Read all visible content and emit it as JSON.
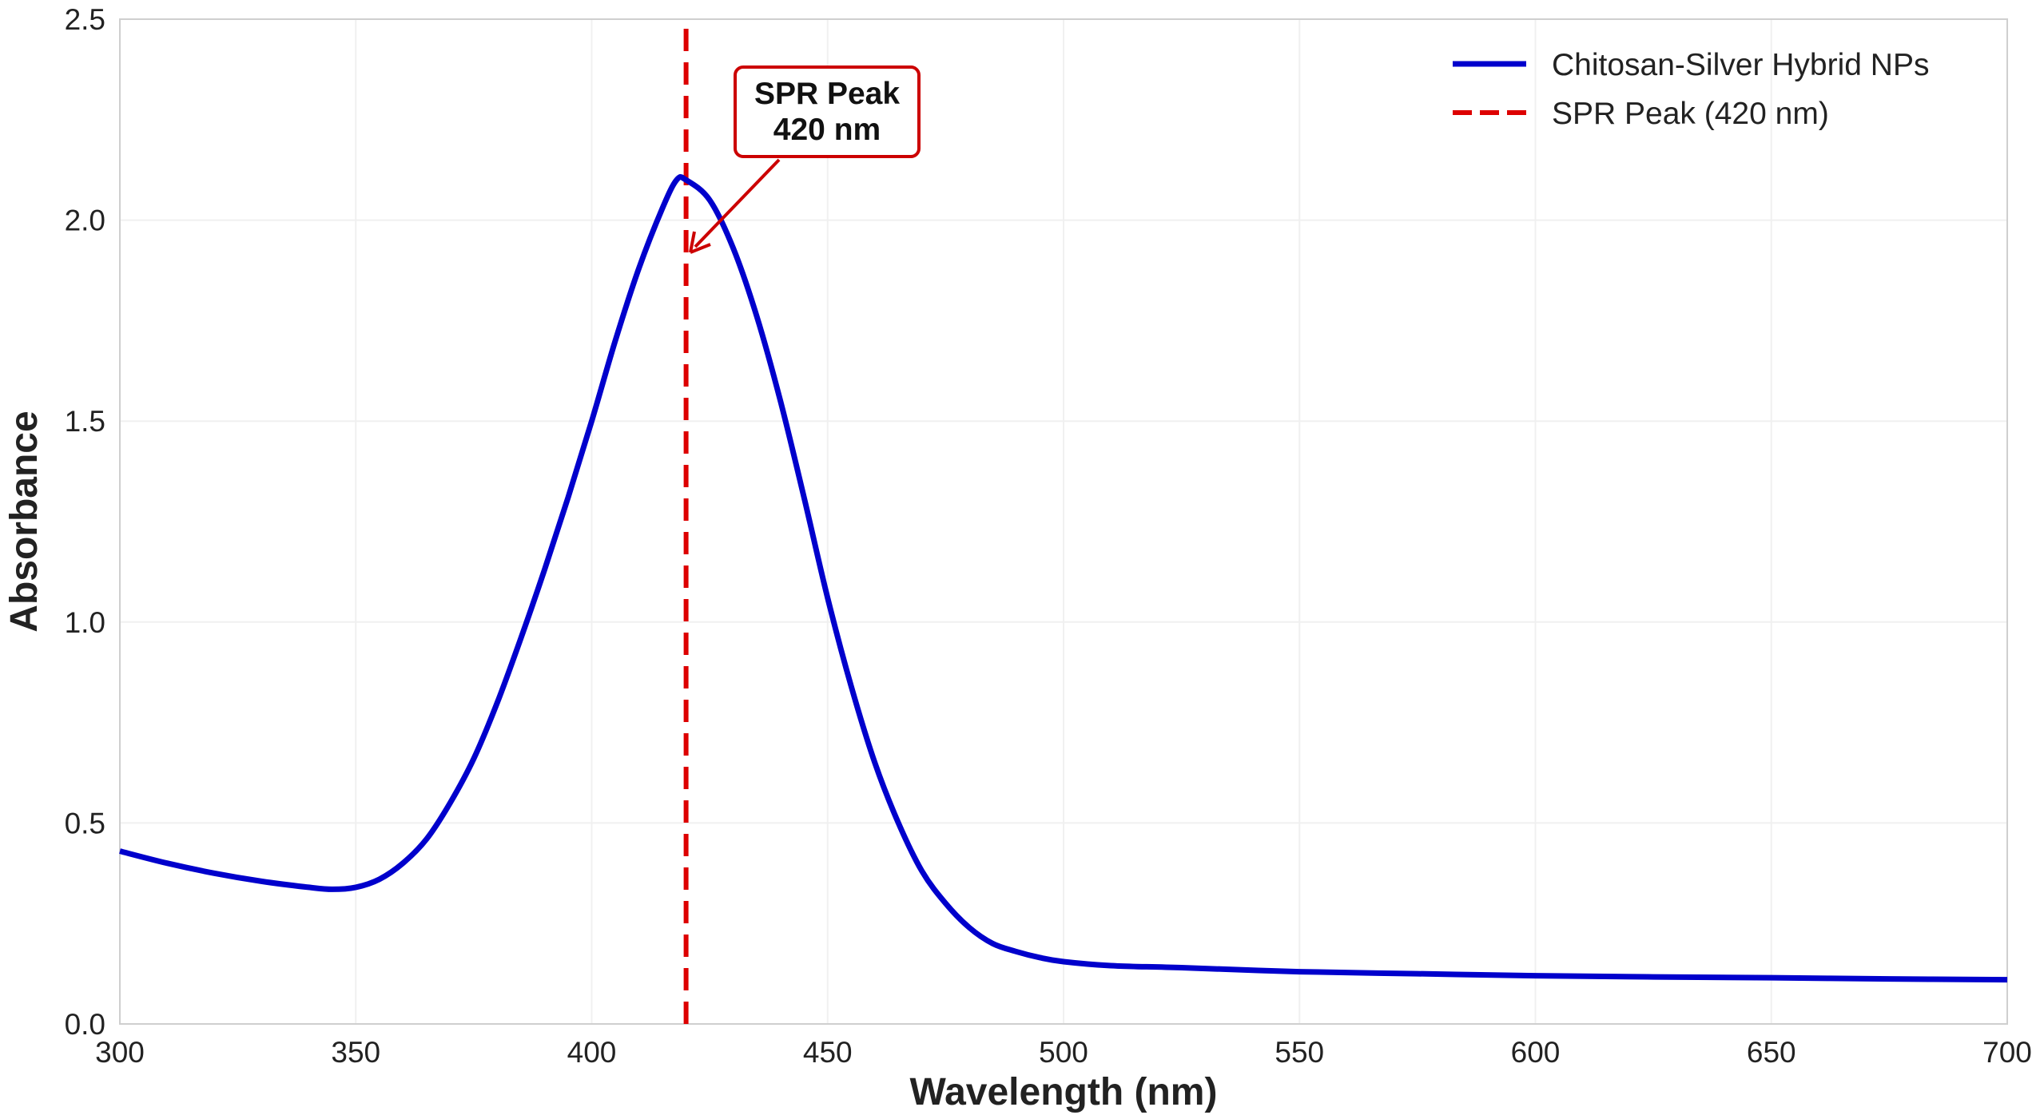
{
  "chart_data": {
    "type": "line",
    "title": "",
    "xlabel": "Wavelength (nm)",
    "ylabel": "Absorbance",
    "xlim": [
      300,
      700
    ],
    "ylim": [
      0,
      2.5
    ],
    "xticks": [
      300,
      350,
      400,
      450,
      500,
      550,
      600,
      650,
      700
    ],
    "xtick_labels": [
      "300",
      "350",
      "400",
      "450",
      "500",
      "550",
      "600",
      "650",
      "700"
    ],
    "yticks": [
      0,
      0.5,
      1.0,
      1.5,
      2.0,
      2.5
    ],
    "ytick_labels": [
      "0.0",
      "0.5",
      "1.0",
      "1.5",
      "2.0",
      "2.5"
    ],
    "grid": true,
    "legend_position": "top-right",
    "series": [
      {
        "name": "Chitosan-Silver Hybrid NPs",
        "color": "#0000cc",
        "style": "solid",
        "x": [
          300,
          310,
          320,
          330,
          340,
          345,
          350,
          355,
          360,
          365,
          370,
          375,
          380,
          385,
          390,
          395,
          400,
          405,
          410,
          415,
          418,
          420,
          425,
          430,
          435,
          440,
          445,
          450,
          455,
          460,
          465,
          470,
          475,
          480,
          485,
          490,
          495,
          500,
          510,
          525,
          550,
          575,
          600,
          625,
          650,
          675,
          700
        ],
        "y": [
          0.43,
          0.4,
          0.375,
          0.355,
          0.34,
          0.335,
          0.34,
          0.36,
          0.4,
          0.46,
          0.55,
          0.66,
          0.8,
          0.96,
          1.13,
          1.31,
          1.5,
          1.7,
          1.88,
          2.03,
          2.1,
          2.1,
          2.05,
          1.93,
          1.76,
          1.55,
          1.31,
          1.06,
          0.84,
          0.65,
          0.5,
          0.38,
          0.3,
          0.24,
          0.2,
          0.18,
          0.165,
          0.155,
          0.145,
          0.14,
          0.13,
          0.125,
          0.12,
          0.117,
          0.115,
          0.112,
          0.11
        ]
      },
      {
        "name": "SPR Peak (420 nm)",
        "color": "#dd0000",
        "style": "dashed",
        "x": [
          420,
          420
        ],
        "y": [
          0,
          2.5
        ]
      }
    ],
    "annotations": [
      {
        "text_line1": "SPR Peak",
        "text_line2": "420 nm",
        "point_x": 420,
        "point_y": 1.9,
        "color": "#cc0000"
      }
    ]
  }
}
